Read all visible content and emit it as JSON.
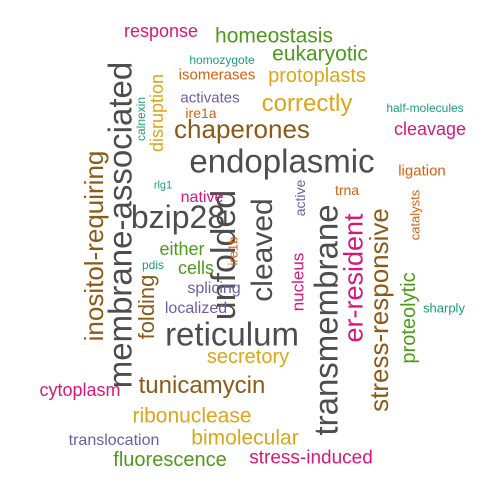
{
  "word_cloud": {
    "palette": {
      "gray": "#4d4d4d",
      "brown": "#8c5a17",
      "gold": "#dca617",
      "orange": "#d95f0e",
      "green": "#4d9a1a",
      "teal": "#1b9e77",
      "purple": "#6a5ea8",
      "magenta": "#d7187a"
    },
    "words": [
      {
        "text": "endoplasmic",
        "color": "#4d4d4d"
      },
      {
        "text": "reticulum",
        "color": "#4d4d4d"
      },
      {
        "text": "unfolded",
        "color": "#4d4d4d"
      },
      {
        "text": "membrane-associated",
        "color": "#4d4d4d"
      },
      {
        "text": "bzip28",
        "color": "#4d4d4d"
      },
      {
        "text": "transmembrane",
        "color": "#4d4d4d"
      },
      {
        "text": "cleaved",
        "color": "#4d4d4d"
      },
      {
        "text": "chaperones",
        "color": "#8c5a17"
      },
      {
        "text": "tunicamycin",
        "color": "#8c5a17"
      },
      {
        "text": "stress-responsive",
        "color": "#8c5a17"
      },
      {
        "text": "inositol-requiring",
        "color": "#8c5a17"
      },
      {
        "text": "folding",
        "color": "#8c5a17"
      },
      {
        "text": "er-resident",
        "color": "#d7187a"
      },
      {
        "text": "correctly",
        "color": "#dca617"
      },
      {
        "text": "secretory",
        "color": "#dca617"
      },
      {
        "text": "ribonuclease",
        "color": "#dca617"
      },
      {
        "text": "bimolecular",
        "color": "#dca617"
      },
      {
        "text": "disruption",
        "color": "#dca617"
      },
      {
        "text": "protoplasts",
        "color": "#dca617"
      },
      {
        "text": "homeostasis",
        "color": "#4d9a1a"
      },
      {
        "text": "eukaryotic",
        "color": "#4d9a1a"
      },
      {
        "text": "fluorescence",
        "color": "#4d9a1a"
      },
      {
        "text": "proteolytic",
        "color": "#4d9a1a"
      },
      {
        "text": "either",
        "color": "#4d9a1a"
      },
      {
        "text": "cells",
        "color": "#4d9a1a"
      },
      {
        "text": "stress-induced",
        "color": "#d7187a"
      },
      {
        "text": "cleavage",
        "color": "#d7187a"
      },
      {
        "text": "cytoplasm",
        "color": "#d7187a"
      },
      {
        "text": "response",
        "color": "#d7187a"
      },
      {
        "text": "nucleus",
        "color": "#d7187a"
      },
      {
        "text": "native",
        "color": "#d7187a"
      },
      {
        "text": "translocation",
        "color": "#6a5ea8"
      },
      {
        "text": "splicing",
        "color": "#6a5ea8"
      },
      {
        "text": "localized",
        "color": "#6a5ea8"
      },
      {
        "text": "activates",
        "color": "#6a5ea8"
      },
      {
        "text": "active",
        "color": "#6a5ea8"
      },
      {
        "text": "isomerases",
        "color": "#d95f0e"
      },
      {
        "text": "ligation",
        "color": "#d95f0e"
      },
      {
        "text": "ire1a",
        "color": "#d95f0e"
      },
      {
        "text": "catalysts",
        "color": "#d95f0e"
      },
      {
        "text": "trna",
        "color": "#d95f0e"
      },
      {
        "text": "ire1b",
        "color": "#d95f0e"
      },
      {
        "text": "homozygote",
        "color": "#1b9e77"
      },
      {
        "text": "half-molecules",
        "color": "#1b9e77"
      },
      {
        "text": "sharply",
        "color": "#1b9e77"
      },
      {
        "text": "calnexin",
        "color": "#1b9e77"
      },
      {
        "text": "rlg1",
        "color": "#1b9e77"
      },
      {
        "text": "pdis",
        "color": "#1b9e77"
      }
    ]
  }
}
